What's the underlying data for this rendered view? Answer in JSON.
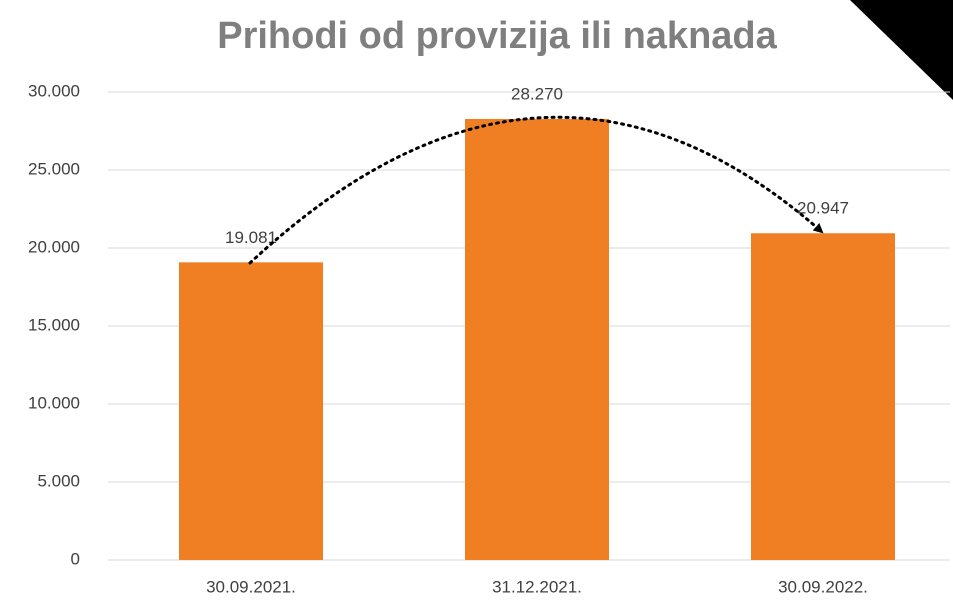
{
  "chart_data": {
    "type": "bar",
    "title": "Prihodi od provizija ili naknada",
    "categories": [
      "30.09.2021.",
      "31.12.2021.",
      "30.09.2022."
    ],
    "values": [
      19081,
      28270,
      20947
    ],
    "value_labels": [
      "19.081",
      "28.270",
      "20.947"
    ],
    "color": "#ef7f22",
    "ylim": [
      0,
      30000
    ],
    "yticks": [
      0,
      {
        "value": 5000,
        "label": "5.000"
      },
      {
        "value": 10000,
        "label": "10.000"
      },
      {
        "value": 15000,
        "label": "15.000"
      },
      {
        "value": 20000,
        "label": "20.000"
      },
      {
        "value": 25000,
        "label": "25.000"
      },
      {
        "value": 30000,
        "label": "30.000"
      }
    ],
    "grid": true
  }
}
